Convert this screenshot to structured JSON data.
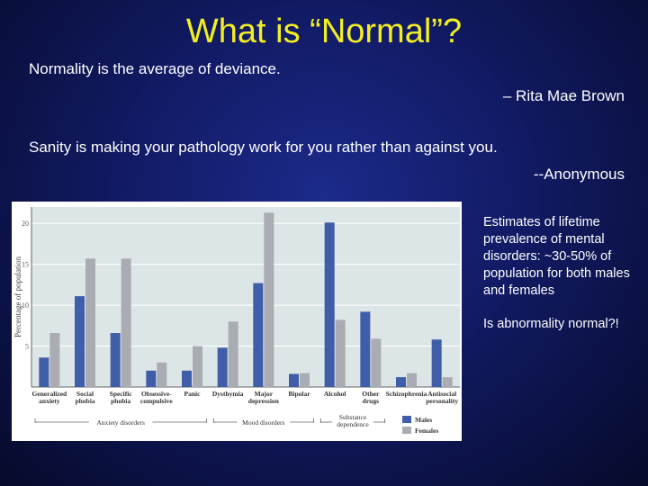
{
  "slide": {
    "title": "What is “Normal”?",
    "quote1": "Normality is the average of deviance.",
    "attrib1": "– Rita Mae Brown",
    "quote2": "Sanity is making your pathology work for you rather than against you.",
    "attrib2": "--Anonymous",
    "note1": "Estimates of lifetime prevalence of mental disorders: ~30-50% of population for both males and females",
    "note2": "Is abnormality normal?!"
  },
  "colors": {
    "title": "#f2ee22",
    "male": "#3f5da8",
    "female": "#a9acb3",
    "plot_bg": "#dde6e6"
  },
  "chart_data": {
    "type": "bar",
    "ylabel": "Percentage of population",
    "ylim": [
      0,
      22
    ],
    "yticks": [
      5,
      10,
      15,
      20
    ],
    "grid": true,
    "legend_position": "bottom-right",
    "categories": [
      [
        "Generalized",
        "anxiety"
      ],
      [
        "Social",
        "phobia"
      ],
      [
        "Specific",
        "phobia"
      ],
      [
        "Obsessive-",
        "compulsive"
      ],
      [
        "Panic"
      ],
      [
        "Dysthymia"
      ],
      [
        "Major",
        "depression"
      ],
      [
        "Bipolar"
      ],
      [
        "Alcohol"
      ],
      [
        "Other",
        "drugs"
      ],
      [
        "Schizophrenia"
      ],
      [
        "Antisocial",
        "personality"
      ]
    ],
    "series": [
      {
        "name": "Males",
        "values": [
          3.6,
          11.1,
          6.6,
          2.0,
          2.0,
          4.8,
          12.7,
          1.6,
          20.1,
          9.2,
          1.2,
          5.8
        ]
      },
      {
        "name": "Females",
        "values": [
          6.6,
          15.7,
          15.7,
          3.0,
          5.0,
          8.0,
          21.3,
          1.7,
          8.2,
          5.9,
          1.7,
          1.2
        ]
      }
    ],
    "groups": [
      {
        "label": "Anxiety disorders",
        "from": 0,
        "to": 4
      },
      {
        "label": "Mood disorders",
        "from": 5,
        "to": 7
      },
      {
        "label": [
          "Substance",
          "dependence"
        ],
        "from": 8,
        "to": 9
      }
    ]
  }
}
